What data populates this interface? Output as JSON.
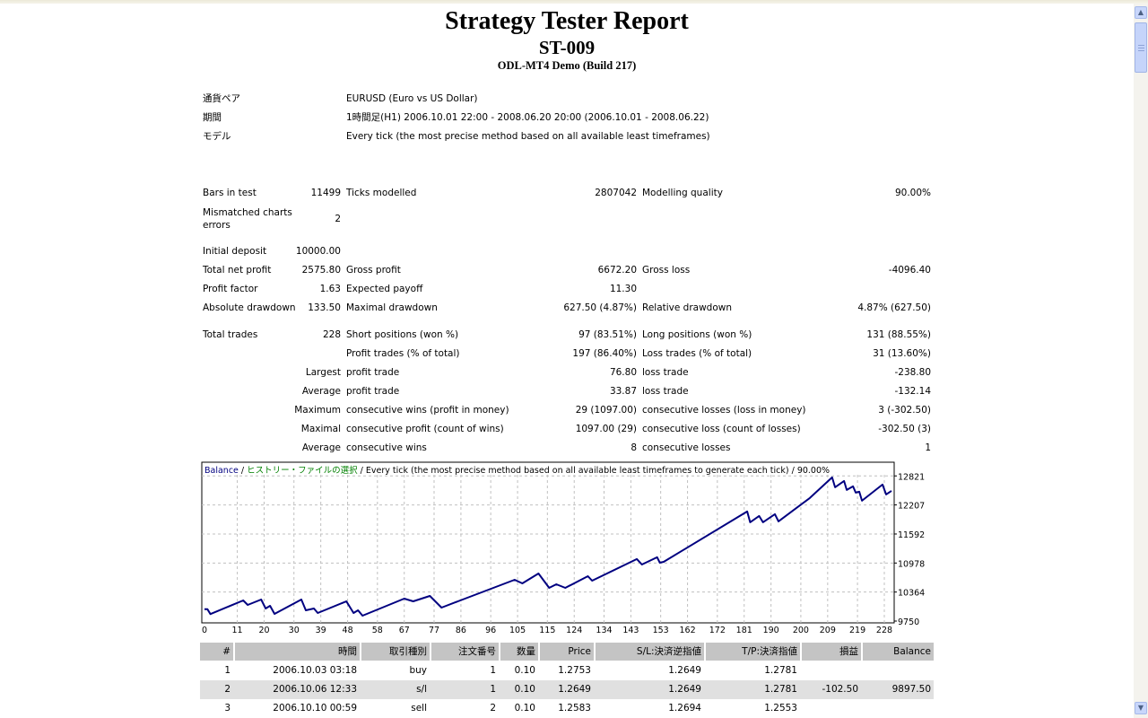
{
  "report": {
    "title": "Strategy Tester Report",
    "name": "ST-009",
    "server": "ODL-MT4 Demo (Build 217)"
  },
  "info": [
    {
      "label": "通貨ペア",
      "value": "EURUSD (Euro vs US Dollar)"
    },
    {
      "label": "期間",
      "value": "1時間足(H1) 2006.10.01 22:00 - 2008.06.20 20:00 (2006.10.01 - 2008.06.22)"
    },
    {
      "label": "モデル",
      "value": "Every tick (the most precise method based on all available least timeframes)"
    }
  ],
  "stats": [
    [
      "Bars in test",
      "11499",
      "Ticks modelled",
      "2807042",
      "Modelling quality",
      "90.00%"
    ],
    [
      "Mismatched charts errors",
      "2",
      "",
      "",
      "",
      ""
    ],
    [
      "Initial deposit",
      "10000.00",
      "",
      "",
      "",
      ""
    ],
    [
      "Total net profit",
      "2575.80",
      "Gross profit",
      "6672.20",
      "Gross loss",
      "-4096.40"
    ],
    [
      "Profit factor",
      "1.63",
      "Expected payoff",
      "11.30",
      "",
      ""
    ],
    [
      "Absolute drawdown",
      "133.50",
      "Maximal drawdown",
      "627.50 (4.87%)",
      "Relative drawdown",
      "4.87% (627.50)"
    ],
    [
      "Total trades",
      "228",
      "Short positions (won %)",
      "97 (83.51%)",
      "Long positions (won %)",
      "131 (88.55%)"
    ],
    [
      "",
      "",
      "Profit trades (% of total)",
      "197 (86.40%)",
      "Loss trades (% of total)",
      "31 (13.60%)"
    ],
    [
      "",
      "Largest",
      "profit trade",
      "76.80",
      "loss trade",
      "-238.80"
    ],
    [
      "",
      "Average",
      "profit trade",
      "33.87",
      "loss trade",
      "-132.14"
    ],
    [
      "",
      "Maximum",
      "consecutive wins (profit in money)",
      "29 (1097.00)",
      "consecutive losses (loss in money)",
      "3 (-302.50)"
    ],
    [
      "",
      "Maximal",
      "consecutive profit (count of wins)",
      "1097.00 (29)",
      "consecutive loss (count of losses)",
      "-302.50 (3)"
    ],
    [
      "",
      "Average",
      "consecutive wins",
      "8",
      "consecutive losses",
      "1"
    ]
  ],
  "chart_data": {
    "type": "line",
    "legend": {
      "series": "Balance",
      "sep1": " / ",
      "history": "ヒストリー・ファイルの選択",
      "sep2": " / ",
      "model": "Every tick (the most precise method based on all available least timeframes to generate each tick) / 90.00%"
    },
    "colors": {
      "line": "#000080",
      "legend_history": "#008000",
      "grid": "#c0c0c0"
    },
    "grid": true,
    "xlim": [
      0,
      231
    ],
    "ylim": [
      9750,
      13100
    ],
    "x_ticks": [
      "0",
      "11",
      "20",
      "30",
      "39",
      "48",
      "58",
      "67",
      "77",
      "86",
      "96",
      "105",
      "115",
      "124",
      "134",
      "143",
      "153",
      "162",
      "172",
      "181",
      "190",
      "200",
      "209",
      "219",
      "228"
    ],
    "y_ticks": [
      "12821",
      "12207",
      "11592",
      "10978",
      "10364",
      "9750"
    ],
    "series": [
      {
        "name": "Balance",
        "x": [
          0,
          1,
          2,
          13,
          14.5,
          19,
          20.5,
          22,
          23.5,
          32.5,
          34,
          36.7,
          38,
          47.6,
          50,
          51.5,
          53,
          67,
          70,
          75.6,
          79.5,
          85,
          104,
          106.6,
          112,
          115.6,
          118,
          121,
          128.6,
          130,
          145,
          146.7,
          151.8,
          152.7,
          154,
          182,
          183,
          186,
          187.3,
          191.3,
          192.5,
          203,
          210.5,
          211.5,
          214.5,
          215.4,
          217.5,
          218.4,
          219.6,
          220.5,
          227.4,
          228.6,
          230.4
        ],
        "y": [
          10000,
          10000,
          9897.5,
          10187,
          10092,
          10206,
          10016,
          10073,
          9902,
          10206,
          9978,
          10016,
          9921,
          10168,
          9921,
          9978,
          9864,
          10225,
          10168,
          10282,
          10035,
          10168,
          10624,
          10548,
          10757,
          10453,
          10529,
          10453,
          10700,
          10605,
          11061,
          10947,
          11099,
          10985,
          11004,
          12068,
          11840,
          11973,
          11840,
          12011,
          11859,
          12353,
          12790,
          12581,
          12714,
          12524,
          12600,
          12467,
          12486,
          12296,
          12638,
          12429,
          12505
        ]
      }
    ]
  },
  "trades": {
    "headers": [
      "#",
      "時間",
      "取引種別",
      "注文番号",
      "数量",
      "Price",
      "S/L:決済逆指値",
      "T/P:決済指値",
      "損益",
      "Balance"
    ],
    "rows": [
      [
        "1",
        "2006.10.03 03:18",
        "buy",
        "1",
        "0.10",
        "1.2753",
        "1.2649",
        "1.2781",
        "",
        ""
      ],
      [
        "2",
        "2006.10.06 12:33",
        "s/l",
        "1",
        "0.10",
        "1.2649",
        "1.2649",
        "1.2781",
        "-102.50",
        "9897.50"
      ],
      [
        "3",
        "2006.10.10 00:59",
        "sell",
        "2",
        "0.10",
        "1.2583",
        "1.2694",
        "1.2553",
        "",
        ""
      ]
    ],
    "header_bg": "#c4c4c4",
    "alt_row_bg": "#e0e0e0"
  },
  "scrollbar": {
    "up_icon": "chevron-up-icon",
    "down_icon": "chevron-down-icon"
  }
}
